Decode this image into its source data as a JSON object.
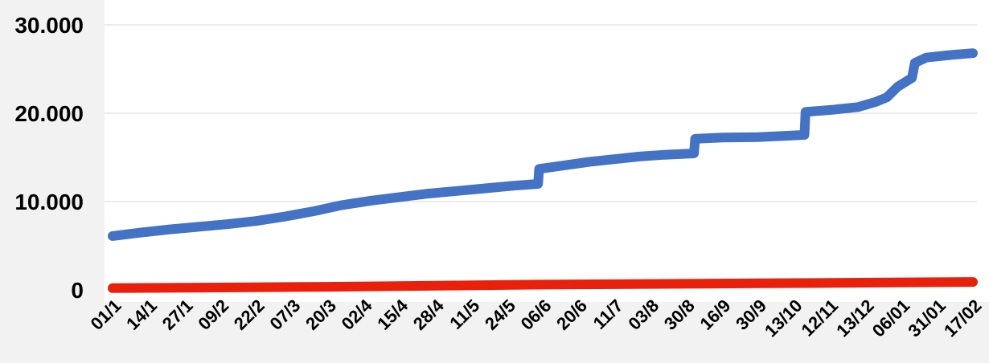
{
  "chart_data": {
    "type": "line",
    "categories": [
      "01/1",
      "14/1",
      "27/1",
      "09/2",
      "22/2",
      "07/3",
      "20/3",
      "02/4",
      "15/4",
      "28/4",
      "11/5",
      "24/5",
      "06/6",
      "20/6",
      "11/7",
      "03/8",
      "30/8",
      "16/9",
      "30/9",
      "13/10",
      "12/11",
      "13/12",
      "06/01",
      "31/01",
      "17/02"
    ],
    "ylim": [
      0,
      30000
    ],
    "yticks": [
      0,
      10000,
      20000,
      30000
    ],
    "ytick_labels": [
      "0",
      "10.000",
      "20.000",
      "30.000"
    ],
    "grid": true,
    "series": [
      {
        "color": "#4472c4",
        "points": [
          [
            0,
            6100
          ],
          [
            0.8,
            6500
          ],
          [
            1.6,
            6850
          ],
          [
            2.4,
            7150
          ],
          [
            3.2,
            7450
          ],
          [
            4.0,
            7800
          ],
          [
            4.8,
            8300
          ],
          [
            5.6,
            8900
          ],
          [
            6.4,
            9600
          ],
          [
            7.2,
            10100
          ],
          [
            8.0,
            10500
          ],
          [
            8.8,
            10900
          ],
          [
            9.6,
            11200
          ],
          [
            10.4,
            11500
          ],
          [
            11.2,
            11800
          ],
          [
            11.87,
            12000
          ],
          [
            11.9,
            13700
          ],
          [
            12.6,
            14100
          ],
          [
            13.3,
            14500
          ],
          [
            14.0,
            14800
          ],
          [
            14.7,
            15100
          ],
          [
            15.4,
            15300
          ],
          [
            16.22,
            15450
          ],
          [
            16.25,
            17100
          ],
          [
            17.0,
            17250
          ],
          [
            18.0,
            17300
          ],
          [
            19.3,
            17550
          ],
          [
            19.33,
            20150
          ],
          [
            20.1,
            20400
          ],
          [
            20.8,
            20700
          ],
          [
            21.3,
            21300
          ],
          [
            21.6,
            21800
          ],
          [
            21.9,
            23000
          ],
          [
            22.3,
            24000
          ],
          [
            22.38,
            25700
          ],
          [
            22.7,
            26300
          ],
          [
            23.4,
            26600
          ],
          [
            24.0,
            26800
          ]
        ]
      },
      {
        "color": "#e8200c",
        "points": [
          [
            0,
            200
          ],
          [
            6,
            350
          ],
          [
            12,
            600
          ],
          [
            18,
            750
          ],
          [
            24,
            900
          ]
        ]
      }
    ]
  }
}
